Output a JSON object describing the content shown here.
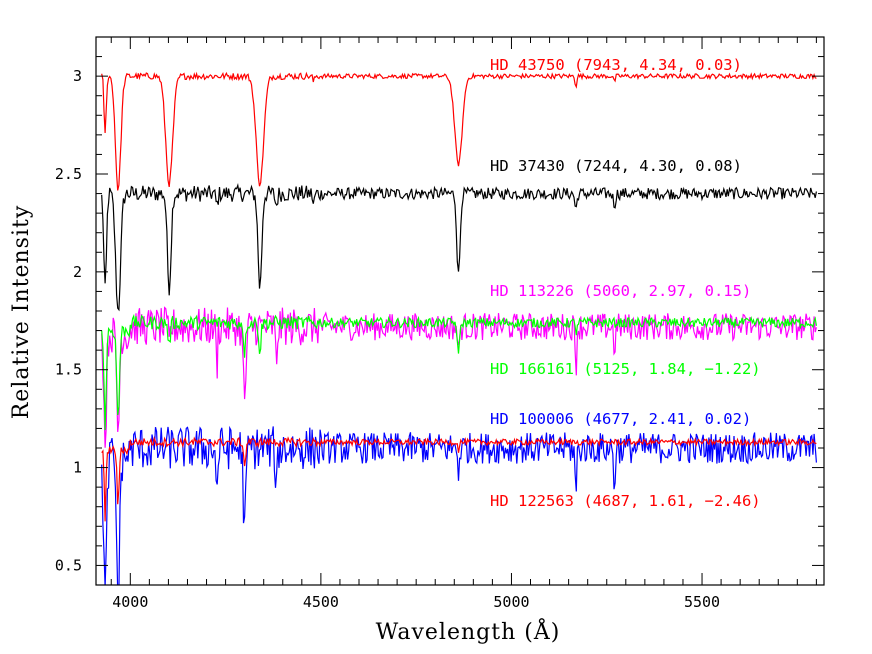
{
  "chart_data": {
    "type": "line",
    "title": "",
    "xlabel": "Wavelength (Å)",
    "ylabel": "Relative Intensity",
    "xlim": [
      3910,
      5820
    ],
    "ylim": [
      0.4,
      3.2
    ],
    "x_ticks": [
      4000,
      4500,
      5000,
      5500
    ],
    "y_ticks": [
      0.5,
      1,
      1.5,
      2,
      2.5,
      3
    ],
    "x_tick_labels": [
      "4000",
      "4500",
      "5000",
      "5500"
    ],
    "y_tick_labels": [
      "0.5",
      "1",
      "1.5",
      "2",
      "2.5",
      "3"
    ],
    "grid": false,
    "legend": "inline labels at right",
    "series": [
      {
        "name": "HD 43750 (7943, 4.34, 0.03)",
        "color": "#ff0000",
        "continuum": 3.0,
        "noise": 0.012,
        "lines": [
          [
            3934,
            0.3,
            4
          ],
          [
            3968,
            0.58,
            10
          ],
          [
            4102,
            0.55,
            13
          ],
          [
            4340,
            0.55,
            14
          ],
          [
            4861,
            0.45,
            14
          ],
          [
            4481,
            0.03,
            3
          ],
          [
            5169,
            0.05,
            3
          ],
          [
            5270,
            0.03,
            3
          ]
        ]
      },
      {
        "name": "HD 37430 (7244, 4.30, 0.08)",
        "color": "#000000",
        "continuum": 2.4,
        "noise": 0.03,
        "lines": [
          [
            3934,
            0.5,
            5
          ],
          [
            3968,
            0.6,
            9
          ],
          [
            4102,
            0.48,
            7
          ],
          [
            4340,
            0.48,
            7
          ],
          [
            4861,
            0.42,
            6
          ],
          [
            4227,
            0.06,
            4
          ],
          [
            4383,
            0.06,
            4
          ],
          [
            4481,
            0.06,
            3
          ],
          [
            5169,
            0.08,
            4
          ],
          [
            5270,
            0.06,
            4
          ]
        ]
      },
      {
        "name": "HD 113226 (5060, 2.97, 0.15)",
        "color": "#ff00ff",
        "continuum": 1.72,
        "noise": 0.07,
        "lines": [
          [
            3934,
            0.55,
            5
          ],
          [
            3968,
            0.5,
            5
          ],
          [
            4300,
            0.35,
            6
          ],
          [
            4227,
            0.2,
            3
          ],
          [
            4383,
            0.2,
            3
          ],
          [
            4861,
            0.15,
            3
          ],
          [
            5169,
            0.2,
            3
          ],
          [
            5270,
            0.12,
            3
          ],
          [
            4102,
            0.1,
            3
          ]
        ]
      },
      {
        "name": "HD 166161 (5125, 1.84, −1.22)",
        "color": "#00ff00",
        "continuum": 1.74,
        "noise": 0.025,
        "lines": [
          [
            3934,
            0.5,
            4
          ],
          [
            3968,
            0.45,
            5
          ],
          [
            4102,
            0.12,
            4
          ],
          [
            4300,
            0.15,
            4
          ],
          [
            4340,
            0.15,
            4
          ],
          [
            4861,
            0.18,
            4
          ],
          [
            5169,
            0.05,
            3
          ]
        ]
      },
      {
        "name": "HD 100006 (4677, 2.41, 0.02)",
        "color": "#0000ff",
        "continuum": 1.1,
        "noise": 0.08,
        "lines": [
          [
            3934,
            0.7,
            6
          ],
          [
            3968,
            0.7,
            6
          ],
          [
            4300,
            0.4,
            5
          ],
          [
            4227,
            0.25,
            3
          ],
          [
            4383,
            0.25,
            3
          ],
          [
            5169,
            0.25,
            3
          ],
          [
            5270,
            0.2,
            3
          ],
          [
            4861,
            0.12,
            3
          ]
        ]
      },
      {
        "name": "HD 122563 (4687, 1.61, −2.46)",
        "color": "#ff0000",
        "continuum": 1.13,
        "noise": 0.015,
        "lines": [
          [
            3934,
            0.38,
            3
          ],
          [
            3968,
            0.28,
            4
          ],
          [
            4300,
            0.12,
            4
          ],
          [
            4861,
            0.04,
            3
          ]
        ]
      }
    ]
  }
}
